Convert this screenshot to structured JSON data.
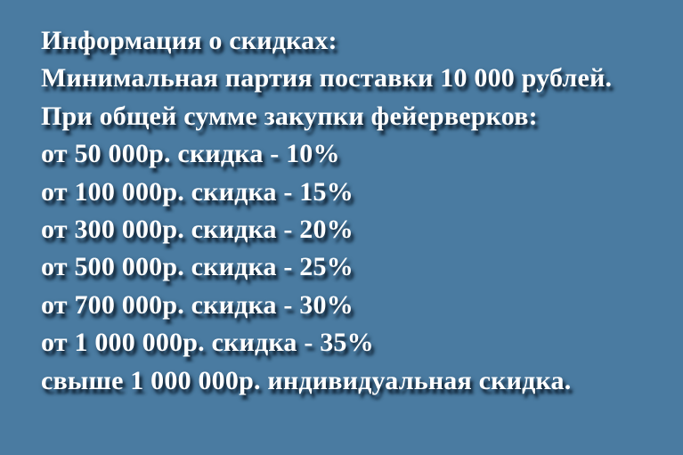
{
  "colors": {
    "background": "#4a7ba1",
    "text": "#ffffff",
    "shadow": "rgba(13, 31, 48, 0.88)"
  },
  "panel": {
    "title": "Информация о скидках:",
    "minimum_order": "Минимальная партия поставки 10 000 рублей.",
    "condition": "При общей сумме закупки фейерверков:",
    "tiers": [
      "от 50 000р. скидка - 10%",
      "от 100 000р. скидка - 15%",
      "от 300 000р. скидка - 20%",
      "от 500 000р. скидка - 25%",
      "от 700 000р. скидка - 30%",
      "от 1 000 000р. скидка - 35%"
    ],
    "special": "свыше 1 000 000р. индивидуальная скидка."
  }
}
